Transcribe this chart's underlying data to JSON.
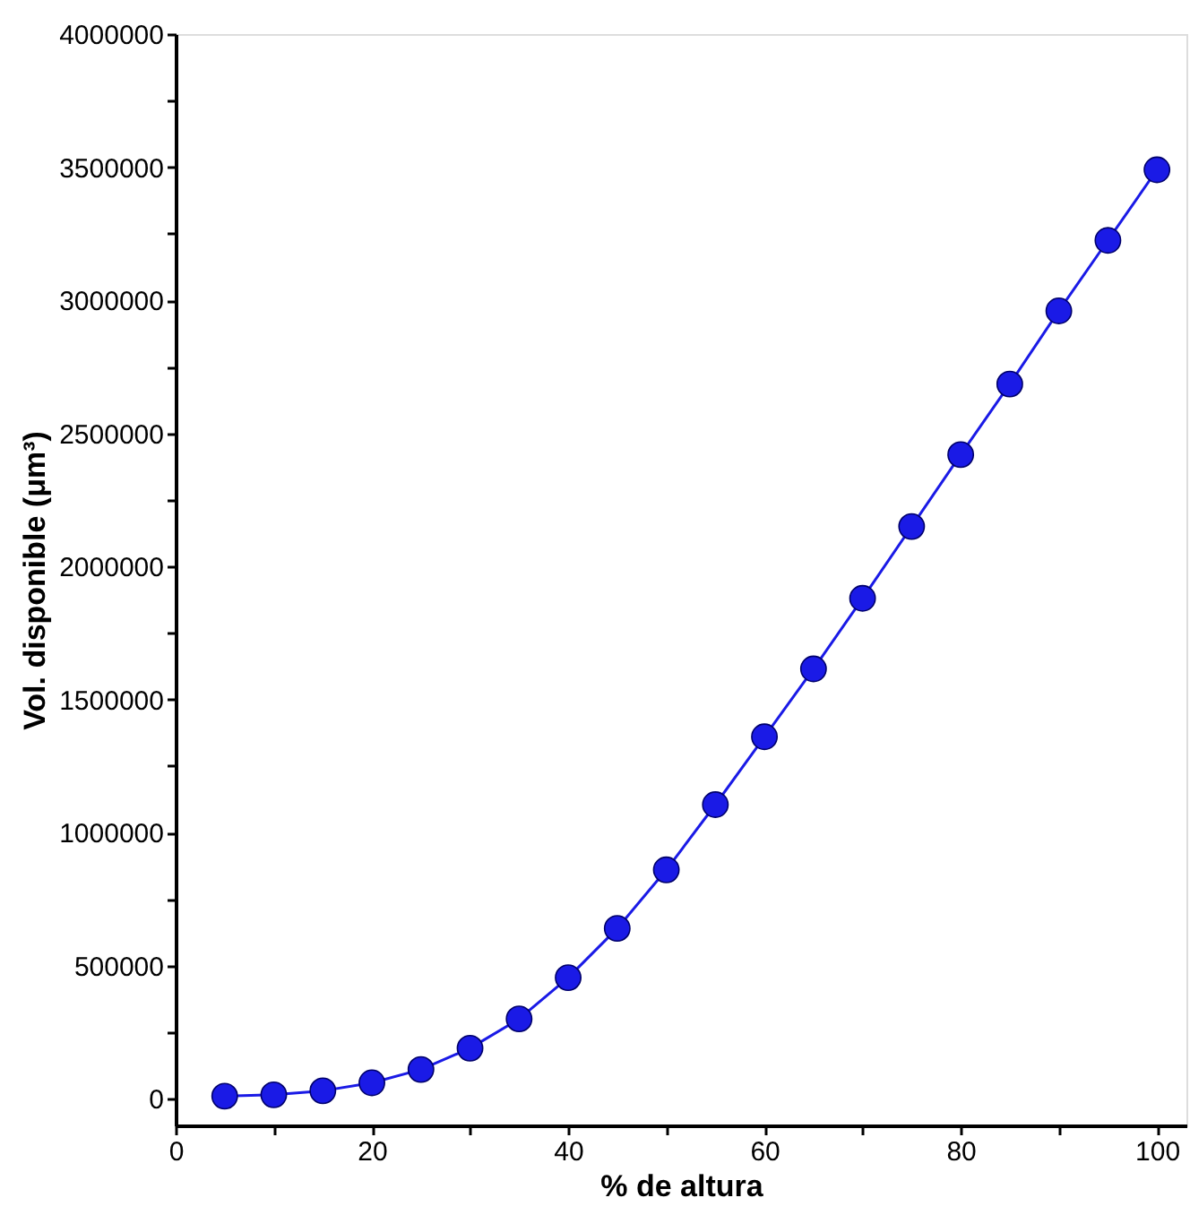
{
  "chart_data": {
    "type": "line",
    "xlabel": "% de altura",
    "ylabel": "Vol. disponible (μm³)",
    "x": [
      5,
      10,
      15,
      20,
      25,
      30,
      35,
      40,
      45,
      50,
      55,
      60,
      65,
      70,
      75,
      80,
      85,
      90,
      95,
      100
    ],
    "series": [
      {
        "color": "#1a1ae6",
        "values": [
          10000,
          15000,
          30000,
          60000,
          110000,
          190000,
          300000,
          455000,
          640000,
          860000,
          1105000,
          1360000,
          1615000,
          1880000,
          2150000,
          2420000,
          2685000,
          2960000,
          3225000,
          3490000
        ]
      }
    ],
    "xlim": [
      0,
      103
    ],
    "xticks": [
      0,
      {
        "value": 10,
        "label": null
      },
      20,
      {
        "value": 30,
        "label": null
      },
      40,
      {
        "value": 50,
        "label": null
      },
      60,
      {
        "value": 70,
        "label": null
      },
      80,
      {
        "value": 90,
        "label": null
      },
      100
    ],
    "ylim": [
      -100000,
      4000000
    ],
    "yticks": [
      0,
      {
        "value": 250000,
        "label": null
      },
      500000,
      {
        "value": 750000,
        "label": null
      },
      1000000,
      {
        "value": 1250000,
        "label": null
      },
      1500000,
      {
        "value": 1750000,
        "label": null
      },
      2000000,
      {
        "value": 2250000,
        "label": null
      },
      2500000,
      {
        "value": 2750000,
        "label": null
      },
      3000000,
      {
        "value": 3250000,
        "label": null
      },
      3500000,
      {
        "value": 3750000,
        "label": null
      },
      4000000
    ],
    "marker": "circle",
    "line_style": "solid",
    "grid": false
  }
}
